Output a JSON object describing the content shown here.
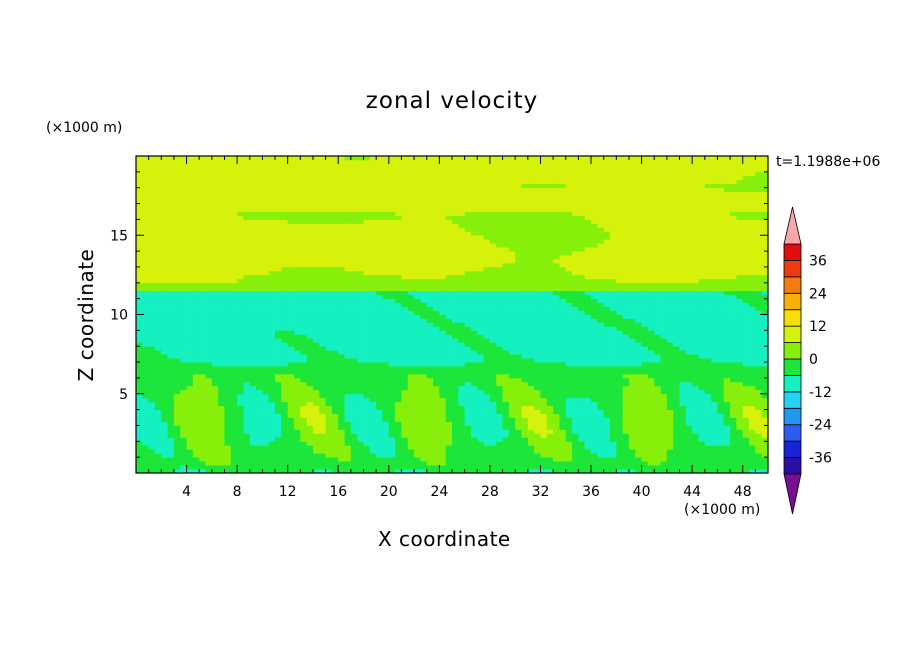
{
  "chart_data": {
    "type": "heatmap",
    "title": "zonal velocity",
    "xlabel": "X coordinate",
    "ylabel": "Z coordinate",
    "x_unit": "(×1000 m)",
    "y_unit": "(×1000 m)",
    "time_label": "t=1.1988e+06",
    "xlim": [
      0,
      50
    ],
    "ylim": [
      0,
      20
    ],
    "x_ticks": [
      4,
      8,
      12,
      16,
      20,
      24,
      28,
      32,
      36,
      40,
      44,
      48
    ],
    "y_ticks": [
      5,
      10,
      15
    ],
    "colorbar": {
      "levels": [
        -42,
        -36,
        -30,
        -24,
        -18,
        -12,
        -6,
        0,
        6,
        12,
        18,
        24,
        30,
        36,
        42
      ],
      "tick_values": [
        36,
        24,
        12,
        0,
        -12,
        -24,
        -36
      ],
      "colors": [
        "#7a0f96",
        "#2a0fa0",
        "#1a22d8",
        "#2c5cf2",
        "#1e98f0",
        "#22d4f2",
        "#14f0c0",
        "#1ce63a",
        "#86f00a",
        "#d6f20a",
        "#f5df06",
        "#f5b009",
        "#f47c0e",
        "#ed3d10",
        "#e00e0e",
        "#f7a7a7"
      ]
    },
    "field_description_values": {
      "upper_layer_z_range": [
        11.5,
        20
      ],
      "upper_layer_velocity_range": [
        3,
        14
      ],
      "middle_layer_z_range": [
        6,
        11.5
      ],
      "middle_layer_velocity_range": [
        -12,
        -3
      ],
      "lower_layer_z_range": [
        0,
        6
      ],
      "lower_layer_velocity_range": [
        -18,
        9
      ]
    }
  }
}
